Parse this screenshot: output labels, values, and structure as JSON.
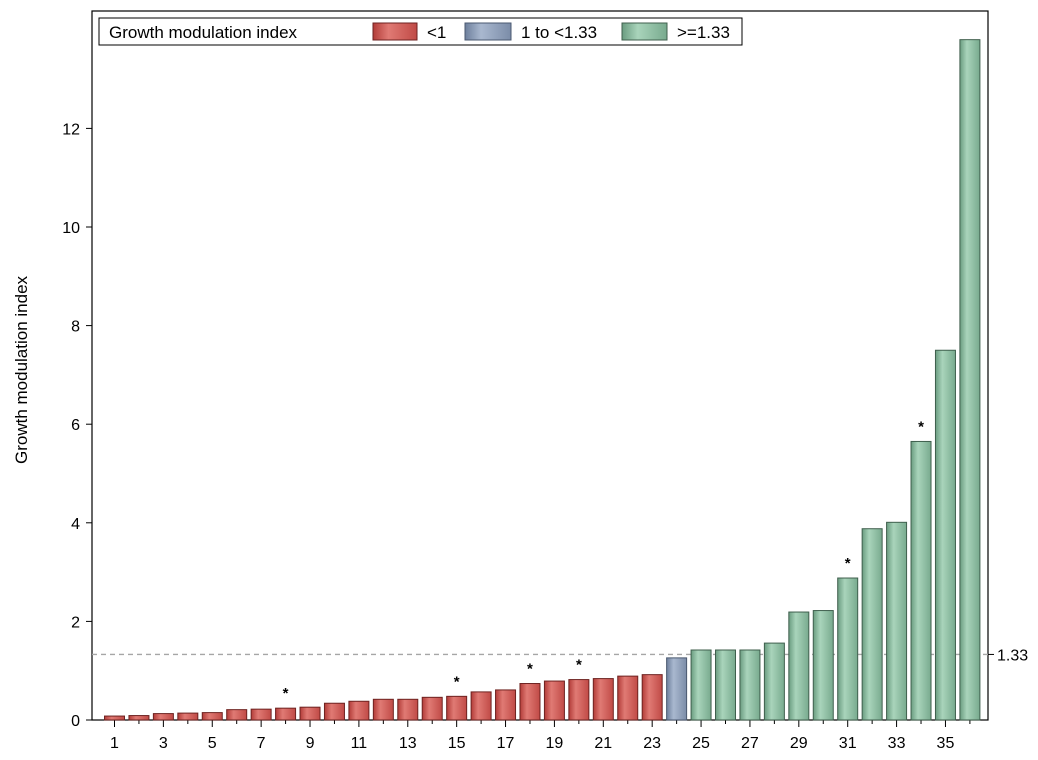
{
  "chart_data": {
    "type": "bar",
    "title": "",
    "xlabel": "",
    "ylabel": "Growth modulation index",
    "ylim": [
      0,
      14
    ],
    "yticks": [
      0,
      2,
      4,
      6,
      8,
      10,
      12
    ],
    "xtick_labels": [
      "1",
      "3",
      "5",
      "7",
      "9",
      "11",
      "13",
      "15",
      "17",
      "19",
      "21",
      "23",
      "25",
      "27",
      "29",
      "31",
      "33",
      "35"
    ],
    "categories": [
      1,
      2,
      3,
      4,
      5,
      6,
      7,
      8,
      9,
      10,
      11,
      12,
      13,
      14,
      15,
      16,
      17,
      18,
      19,
      20,
      21,
      22,
      23,
      24,
      25,
      26,
      27,
      28,
      29,
      30,
      31,
      32,
      33,
      34,
      35,
      36
    ],
    "values": [
      0.08,
      0.09,
      0.13,
      0.14,
      0.15,
      0.21,
      0.22,
      0.24,
      0.26,
      0.34,
      0.38,
      0.42,
      0.42,
      0.46,
      0.48,
      0.57,
      0.61,
      0.74,
      0.79,
      0.82,
      0.84,
      0.89,
      0.92,
      1.26,
      1.42,
      1.42,
      1.42,
      1.56,
      2.19,
      2.22,
      2.88,
      3.88,
      4.01,
      5.65,
      7.5,
      13.8
    ],
    "groups": [
      "<1",
      "<1",
      "<1",
      "<1",
      "<1",
      "<1",
      "<1",
      "<1",
      "<1",
      "<1",
      "<1",
      "<1",
      "<1",
      "<1",
      "<1",
      "<1",
      "<1",
      "<1",
      "<1",
      "<1",
      "<1",
      "<1",
      "<1",
      "1 to <1.33",
      ">=1.33",
      ">=1.33",
      ">=1.33",
      ">=1.33",
      ">=1.33",
      ">=1.33",
      ">=1.33",
      ">=1.33",
      ">=1.33",
      ">=1.33",
      ">=1.33",
      ">=1.33"
    ],
    "star_marker": "*",
    "starred_categories": [
      8,
      15,
      18,
      20,
      31,
      34
    ],
    "reference_line": {
      "value": 1.33,
      "label": "1.33",
      "style": "dashed",
      "color": "#a6a6a6"
    },
    "legend": {
      "title": "Growth modulation index",
      "placement": "top-left",
      "entries": [
        {
          "label": "<1",
          "color": "#cd5a56"
        },
        {
          "label": "1 to <1.33",
          "color": "#8fa1bd"
        },
        {
          "label": ">=1.33",
          "color": "#8fbfa5"
        }
      ]
    },
    "colors": {
      "<1": "#cd5a56",
      "1 to <1.33": "#8fa1bd",
      ">=1.33": "#8fbfa5"
    },
    "grid": false
  }
}
